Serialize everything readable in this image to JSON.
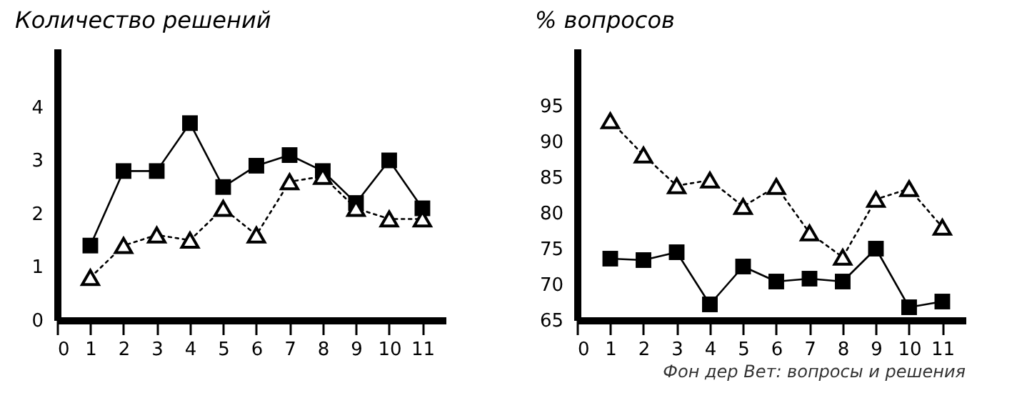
{
  "chart_data": [
    {
      "type": "line",
      "ylabel": "Количество решений",
      "x": [
        1,
        2,
        3,
        4,
        5,
        6,
        7,
        8,
        9,
        10,
        11
      ],
      "xlim": [
        0,
        11.7
      ],
      "xticks": [
        0,
        1,
        2,
        3,
        4,
        5,
        6,
        7,
        8,
        9,
        10,
        11
      ],
      "ylim": [
        0,
        5.1
      ],
      "yticks": [
        0,
        1,
        2,
        3,
        4
      ],
      "series": [
        {
          "color": "#000000",
          "marker": "square",
          "line_style": "solid",
          "values": [
            1.4,
            2.8,
            2.8,
            3.7,
            2.5,
            2.9,
            3.1,
            2.8,
            2.2,
            3.0,
            2.1
          ]
        },
        {
          "color": "#000000",
          "marker": "triangle",
          "line_style": "dotted",
          "values": [
            0.8,
            1.4,
            1.6,
            1.5,
            2.1,
            1.6,
            2.6,
            2.7,
            2.1,
            1.9,
            1.9
          ]
        }
      ]
    },
    {
      "type": "line",
      "ylabel": "% вопросов",
      "x": [
        1,
        2,
        3,
        4,
        5,
        6,
        7,
        8,
        9,
        10,
        11
      ],
      "xlim": [
        0,
        11.7
      ],
      "xticks": [
        0,
        1,
        2,
        3,
        4,
        5,
        6,
        7,
        8,
        9,
        10,
        11
      ],
      "ylim": [
        65,
        103
      ],
      "yticks": [
        65,
        70,
        75,
        80,
        85,
        90,
        95
      ],
      "annotations": [
        "Фон дер Вет: вопросы и решения"
      ],
      "series": [
        {
          "color": "#000000",
          "marker": "triangle",
          "line_style": "dotted",
          "values": [
            92.9,
            88.1,
            83.8,
            84.6,
            80.9,
            83.7,
            77.2,
            73.8,
            81.9,
            83.4,
            78.0
          ]
        },
        {
          "color": "#000000",
          "marker": "square",
          "line_style": "solid",
          "values": [
            73.6,
            73.4,
            74.5,
            67.2,
            72.5,
            70.4,
            70.8,
            70.4,
            75.0,
            66.8,
            67.6
          ]
        }
      ]
    }
  ]
}
